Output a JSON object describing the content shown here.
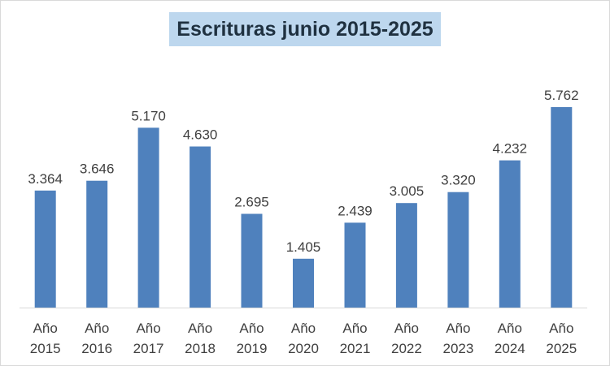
{
  "chart_data": {
    "type": "bar",
    "title": "Escrituras junio 2015-2025",
    "categories": [
      [
        "Año",
        "2015"
      ],
      [
        "Año",
        "2016"
      ],
      [
        "Año",
        "2017"
      ],
      [
        "Año",
        "2018"
      ],
      [
        "Año",
        "2019"
      ],
      [
        "Año",
        "2020"
      ],
      [
        "Año",
        "2021"
      ],
      [
        "Año",
        "2022"
      ],
      [
        "Año",
        "2023"
      ],
      [
        "Año",
        "2024"
      ],
      [
        "Año",
        "2025"
      ]
    ],
    "values": [
      3364,
      3646,
      5170,
      4630,
      2695,
      1405,
      2439,
      3005,
      3320,
      4232,
      5762
    ],
    "value_labels": [
      "3.364",
      "3.646",
      "5.170",
      "4.630",
      "2.695",
      "1.405",
      "2.439",
      "3.005",
      "3.320",
      "4.232",
      "5.762"
    ],
    "ylim": [
      0,
      5762
    ],
    "grid": false,
    "legend": "none",
    "bar_color": "#4f81bd"
  }
}
